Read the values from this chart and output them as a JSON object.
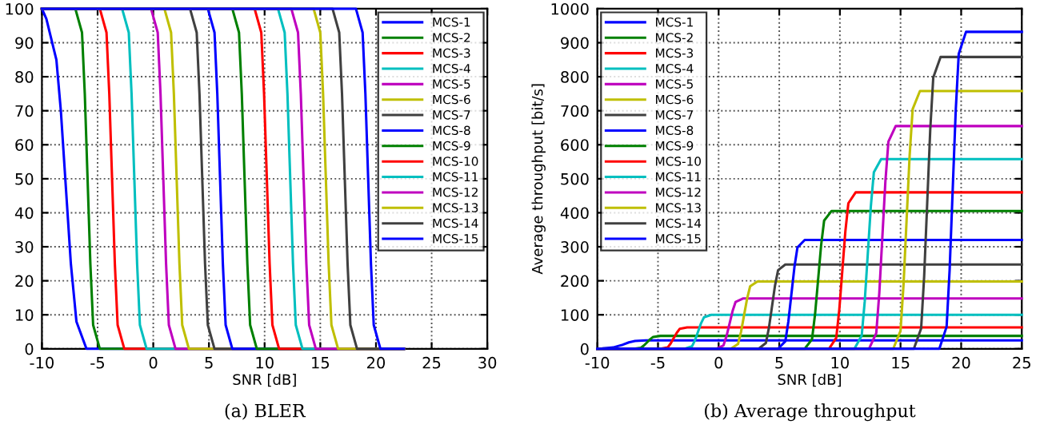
{
  "chart_data": [
    {
      "type": "line",
      "title": "(a) BLER",
      "xlabel": "SNR [dB]",
      "xlim": [
        -10,
        30
      ],
      "xticks": [
        -10,
        -5,
        0,
        5,
        10,
        15,
        20,
        25,
        30
      ],
      "ylim": [
        0,
        100
      ],
      "yticks": [
        0,
        10,
        20,
        30,
        40,
        50,
        60,
        70,
        80,
        90,
        100
      ],
      "grid": true,
      "legend": "top right",
      "line_style": "solid",
      "marker": "none",
      "series": [
        {
          "name": "MCS-1",
          "color": "#0000ff",
          "x": [
            -10,
            -9.6,
            -8.7,
            -8.3,
            -7.9,
            -7.4,
            -6.9,
            -6.0,
            22.5
          ],
          "values": [
            100,
            97,
            85,
            70,
            50,
            25,
            8,
            0,
            0
          ]
        },
        {
          "name": "MCS-2",
          "color": "#008000",
          "x": [
            -10,
            -7.0,
            -6.4,
            -6.15,
            -5.9,
            -5.65,
            -5.4,
            -4.8,
            22.5
          ],
          "values": [
            100,
            100,
            93,
            75,
            50,
            25,
            7,
            0,
            0
          ]
        },
        {
          "name": "MCS-3",
          "color": "#ff0000",
          "x": [
            -10,
            -4.8,
            -4.2,
            -3.95,
            -3.7,
            -3.45,
            -3.2,
            -2.6,
            22.5
          ],
          "values": [
            100,
            100,
            93,
            75,
            50,
            25,
            7,
            0,
            0
          ]
        },
        {
          "name": "MCS-4",
          "color": "#00bfbf",
          "x": [
            -10,
            -2.8,
            -2.2,
            -1.95,
            -1.7,
            -1.45,
            -1.2,
            -0.6,
            22.5
          ],
          "values": [
            100,
            100,
            93,
            75,
            50,
            25,
            7,
            0,
            0
          ]
        },
        {
          "name": "MCS-5",
          "color": "#bf00bf",
          "x": [
            -10,
            -0.2,
            0.4,
            0.65,
            0.9,
            1.15,
            1.4,
            2.0,
            22.5
          ],
          "values": [
            100,
            100,
            93,
            75,
            50,
            25,
            7,
            0,
            0
          ]
        },
        {
          "name": "MCS-6",
          "color": "#bfbf00",
          "x": [
            -10,
            1.0,
            1.6,
            1.85,
            2.1,
            2.35,
            2.6,
            3.2,
            22.5
          ],
          "values": [
            100,
            100,
            93,
            75,
            50,
            25,
            7,
            0,
            0
          ]
        },
        {
          "name": "MCS-7",
          "color": "#404040",
          "x": [
            -10,
            3.3,
            3.9,
            4.15,
            4.4,
            4.65,
            4.9,
            5.5,
            22.5
          ],
          "values": [
            100,
            100,
            93,
            75,
            50,
            25,
            7,
            0,
            0
          ]
        },
        {
          "name": "MCS-8",
          "color": "#0000ff",
          "x": [
            -10,
            4.9,
            5.5,
            5.75,
            6.0,
            6.25,
            6.5,
            7.1,
            22.5
          ],
          "values": [
            100,
            100,
            93,
            75,
            50,
            25,
            7,
            0,
            0
          ]
        },
        {
          "name": "MCS-9",
          "color": "#008000",
          "x": [
            -10,
            7.1,
            7.7,
            7.95,
            8.2,
            8.45,
            8.7,
            9.3,
            22.5
          ],
          "values": [
            100,
            100,
            93,
            75,
            50,
            25,
            7,
            0,
            0
          ]
        },
        {
          "name": "MCS-10",
          "color": "#ff0000",
          "x": [
            -10,
            9.1,
            9.7,
            9.95,
            10.2,
            10.45,
            10.7,
            11.3,
            22.5
          ],
          "values": [
            100,
            100,
            93,
            75,
            50,
            25,
            7,
            0,
            0
          ]
        },
        {
          "name": "MCS-11",
          "color": "#00bfbf",
          "x": [
            -10,
            11.2,
            11.8,
            12.05,
            12.3,
            12.55,
            12.8,
            13.4,
            22.5
          ],
          "values": [
            100,
            100,
            93,
            75,
            50,
            25,
            7,
            0,
            0
          ]
        },
        {
          "name": "MCS-12",
          "color": "#bf00bf",
          "x": [
            -10,
            12.4,
            13.0,
            13.25,
            13.5,
            13.75,
            14.0,
            14.6,
            22.5
          ],
          "values": [
            100,
            100,
            93,
            75,
            50,
            25,
            7,
            0,
            0
          ]
        },
        {
          "name": "MCS-13",
          "color": "#bfbf00",
          "x": [
            -10,
            14.4,
            15.0,
            15.25,
            15.5,
            15.75,
            16.0,
            16.6,
            22.5
          ],
          "values": [
            100,
            100,
            93,
            75,
            50,
            25,
            7,
            0,
            0
          ]
        },
        {
          "name": "MCS-14",
          "color": "#404040",
          "x": [
            -10,
            16.1,
            16.7,
            16.95,
            17.2,
            17.45,
            17.7,
            18.3,
            22.5
          ],
          "values": [
            100,
            100,
            93,
            75,
            50,
            25,
            7,
            0,
            0
          ]
        },
        {
          "name": "MCS-15",
          "color": "#0000ff",
          "x": [
            -10,
            18.2,
            18.8,
            19.05,
            19.3,
            19.55,
            19.8,
            20.4,
            22.5
          ],
          "values": [
            100,
            100,
            93,
            75,
            50,
            25,
            7,
            0,
            0
          ]
        }
      ]
    },
    {
      "type": "line",
      "title": "(b) Average throughput",
      "xlabel": "SNR [dB]",
      "ylabel": "Average throughput [bit/s]",
      "xlim": [
        -10,
        25
      ],
      "xticks": [
        -10,
        -5,
        0,
        5,
        10,
        15,
        20,
        25
      ],
      "ylim": [
        0,
        1000
      ],
      "yticks": [
        0,
        100,
        200,
        300,
        400,
        500,
        600,
        700,
        800,
        900,
        1000
      ],
      "grid": true,
      "legend": "top left",
      "line_style": "solid",
      "marker": "none",
      "series": [
        {
          "name": "MCS-1",
          "color": "#0000ff",
          "x": [
            -10,
            -9.6,
            -8.7,
            -8.3,
            -7.9,
            -7.4,
            -6.9,
            -6.0,
            25
          ],
          "values": [
            0,
            1,
            4,
            8,
            12,
            19,
            23,
            25,
            25
          ]
        },
        {
          "name": "MCS-2",
          "color": "#008000",
          "x": [
            -10,
            -7.0,
            -6.4,
            -6.15,
            -5.9,
            -5.65,
            -5.4,
            -4.8,
            25
          ],
          "values": [
            0,
            0,
            3,
            10,
            19,
            28,
            35,
            38,
            38
          ]
        },
        {
          "name": "MCS-3",
          "color": "#ff0000",
          "x": [
            -10,
            -4.8,
            -4.2,
            -3.95,
            -3.7,
            -3.45,
            -3.2,
            -2.6,
            25
          ],
          "values": [
            0,
            0,
            4,
            16,
            32,
            47,
            59,
            63,
            63
          ]
        },
        {
          "name": "MCS-4",
          "color": "#00bfbf",
          "x": [
            -10,
            -2.8,
            -2.2,
            -1.95,
            -1.7,
            -1.45,
            -1.2,
            -0.6,
            25
          ],
          "values": [
            0,
            0,
            7,
            25,
            50,
            75,
            93,
            100,
            100
          ]
        },
        {
          "name": "MCS-5",
          "color": "#bf00bf",
          "x": [
            -10,
            -0.2,
            0.4,
            0.65,
            0.9,
            1.15,
            1.4,
            2.0,
            25
          ],
          "values": [
            0,
            0,
            10,
            37,
            74,
            111,
            138,
            148,
            148
          ]
        },
        {
          "name": "MCS-6",
          "color": "#bfbf00",
          "x": [
            -10,
            1.0,
            1.6,
            1.85,
            2.1,
            2.35,
            2.6,
            3.2,
            25
          ],
          "values": [
            0,
            0,
            14,
            50,
            99,
            148,
            184,
            198,
            198
          ]
        },
        {
          "name": "MCS-7",
          "color": "#404040",
          "x": [
            -10,
            3.3,
            3.9,
            4.15,
            4.4,
            4.65,
            4.9,
            5.5,
            25
          ],
          "values": [
            0,
            0,
            17,
            62,
            124,
            186,
            231,
            248,
            248
          ]
        },
        {
          "name": "MCS-8",
          "color": "#0000ff",
          "x": [
            -10,
            4.9,
            5.5,
            5.75,
            6.0,
            6.25,
            6.5,
            7.1,
            25
          ],
          "values": [
            0,
            0,
            22,
            80,
            160,
            240,
            298,
            320,
            320
          ]
        },
        {
          "name": "MCS-9",
          "color": "#008000",
          "x": [
            -10,
            7.1,
            7.7,
            7.95,
            8.2,
            8.45,
            8.7,
            9.3,
            25
          ],
          "values": [
            0,
            0,
            28,
            101,
            202,
            304,
            377,
            405,
            405
          ]
        },
        {
          "name": "MCS-10",
          "color": "#ff0000",
          "x": [
            -10,
            9.1,
            9.7,
            9.95,
            10.2,
            10.45,
            10.7,
            11.3,
            25
          ],
          "values": [
            0,
            0,
            32,
            115,
            230,
            345,
            428,
            460,
            460
          ]
        },
        {
          "name": "MCS-11",
          "color": "#00bfbf",
          "x": [
            -10,
            11.2,
            11.8,
            12.05,
            12.3,
            12.55,
            12.8,
            13.4,
            25
          ],
          "values": [
            0,
            0,
            39,
            140,
            279,
            418,
            519,
            558,
            558
          ]
        },
        {
          "name": "MCS-12",
          "color": "#bf00bf",
          "x": [
            -10,
            12.4,
            13.0,
            13.25,
            13.5,
            13.75,
            14.0,
            14.6,
            25
          ],
          "values": [
            0,
            0,
            46,
            164,
            328,
            491,
            609,
            655,
            655
          ]
        },
        {
          "name": "MCS-13",
          "color": "#bfbf00",
          "x": [
            -10,
            14.4,
            15.0,
            15.25,
            15.5,
            15.75,
            16.0,
            16.6,
            25
          ],
          "values": [
            0,
            0,
            53,
            190,
            379,
            568,
            705,
            758,
            758
          ]
        },
        {
          "name": "MCS-14",
          "color": "#404040",
          "x": [
            -10,
            16.1,
            16.7,
            16.95,
            17.2,
            17.45,
            17.7,
            18.3,
            25
          ],
          "values": [
            0,
            0,
            60,
            214,
            429,
            644,
            798,
            858,
            858
          ]
        },
        {
          "name": "MCS-15",
          "color": "#0000ff",
          "x": [
            -10,
            18.2,
            18.8,
            19.05,
            19.3,
            19.55,
            19.8,
            20.4,
            25
          ],
          "values": [
            0,
            0,
            65,
            233,
            466,
            699,
            867,
            932,
            932
          ]
        }
      ]
    }
  ]
}
